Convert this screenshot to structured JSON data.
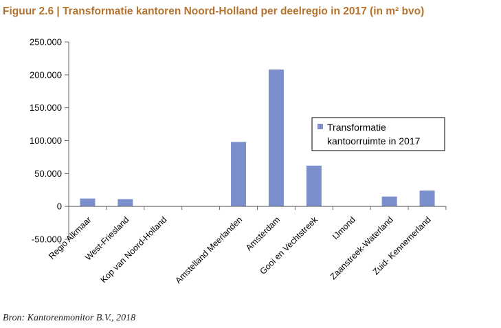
{
  "figure": {
    "title": "Figuur 2.6 | Transformatie kantoren Noord-Holland per deelregio in 2017 (in m² bvo)",
    "source": "Bron: Kantorenmonitor B.V., 2018"
  },
  "chart_data": {
    "type": "bar",
    "categories": [
      "Regio Alkmaar",
      "West-Friesland",
      "Kop van Noord-Holland",
      "",
      "Amstelland Meerlanden",
      "Amsterdam",
      "Gooi en Vechtstreek",
      "IJmond",
      "Zaanstreek-Waterland",
      "Zuid- Kennemerland"
    ],
    "series": [
      {
        "name": "Transformatie kantoorruimte in 2017",
        "values": [
          12000,
          11000,
          0,
          0,
          98000,
          208000,
          62000,
          0,
          15000,
          24000
        ],
        "color": "#7a8fcc"
      }
    ],
    "ylim": [
      -50000,
      250000
    ],
    "yticks": [
      250000,
      200000,
      150000,
      100000,
      50000,
      0,
      -50000
    ],
    "ytick_labels": [
      "250.000",
      "200.000",
      "150.000",
      "100.000",
      "50.000",
      "0",
      "-50.000"
    ],
    "legend": {
      "lines": [
        "Transformatie",
        "kantoorruimte in 2017"
      ],
      "placement": "right"
    },
    "grid": false
  }
}
